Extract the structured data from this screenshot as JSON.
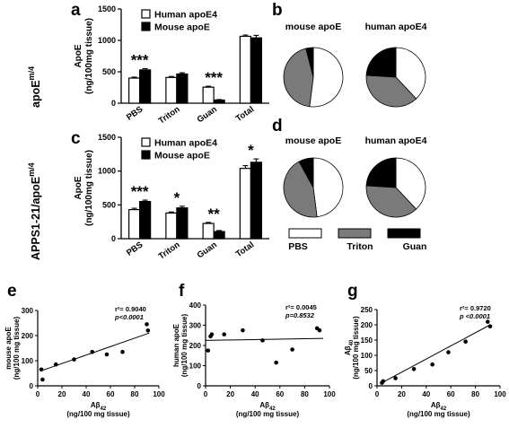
{
  "colors": {
    "pbs": "#ffffff",
    "triton": "#7a7a7a",
    "guan": "#000000",
    "human": "#ffffff",
    "mouse": "#000000"
  },
  "panel_letters": {
    "a": "a",
    "b": "b",
    "c": "c",
    "d": "d",
    "e": "e",
    "f": "f",
    "g": "g"
  },
  "row_labels": {
    "top": "apoE",
    "top_sup": "m/4",
    "mid": "APPS1-21/apoE",
    "mid_sup": "m/4"
  },
  "pie_legend": [
    "PBS",
    "Triton",
    "Guan"
  ],
  "chart_data": [
    {
      "id": "a",
      "type": "bar",
      "categories": [
        "PBS",
        "Triton",
        "Guan",
        "Total"
      ],
      "series": [
        {
          "name": "Human apoE4",
          "values": [
            400,
            410,
            255,
            1065
          ],
          "errors": [
            15,
            15,
            15,
            20
          ]
        },
        {
          "name": "Mouse apoE",
          "values": [
            530,
            465,
            50,
            1040
          ],
          "errors": [
            20,
            20,
            8,
            40
          ]
        }
      ],
      "significance": [
        "***",
        "",
        "***",
        ""
      ],
      "ylabel": [
        "ApoE",
        "(ng/100mg tissue)"
      ],
      "ylim": [
        0,
        1500
      ],
      "yticks": [
        0,
        500,
        1000,
        1500
      ]
    },
    {
      "id": "b",
      "type": "pie",
      "pies": [
        {
          "title": "mouse apoE",
          "values": [
            52,
            44,
            4
          ]
        },
        {
          "title": "human apoE4",
          "values": [
            38,
            38,
            24
          ]
        }
      ],
      "labels": [
        "PBS",
        "Triton",
        "Guan"
      ]
    },
    {
      "id": "c",
      "type": "bar",
      "categories": [
        "PBS",
        "Triton",
        "Guan",
        "Total"
      ],
      "series": [
        {
          "name": "Human apoE4",
          "values": [
            430,
            380,
            225,
            1040
          ],
          "errors": [
            20,
            15,
            15,
            40
          ]
        },
        {
          "name": "Mouse apoE",
          "values": [
            550,
            455,
            105,
            1130
          ],
          "errors": [
            20,
            25,
            15,
            50
          ]
        }
      ],
      "significance": [
        "***",
        "*",
        "**",
        "*"
      ],
      "ylabel": [
        "ApoE",
        "(ng/100mg tissue)"
      ],
      "ylim": [
        0,
        1500
      ],
      "yticks": [
        0,
        500,
        1000,
        1500
      ]
    },
    {
      "id": "d",
      "type": "pie",
      "pies": [
        {
          "title": "mouse apoE",
          "values": [
            48,
            44,
            8
          ]
        },
        {
          "title": "human apoE4",
          "values": [
            38,
            38,
            24
          ]
        }
      ],
      "labels": [
        "PBS",
        "Triton",
        "Guan"
      ]
    },
    {
      "id": "e",
      "type": "scatter",
      "x": [
        3,
        4,
        15,
        30,
        45,
        57,
        70,
        90,
        91
      ],
      "y": [
        65,
        25,
        85,
        105,
        135,
        125,
        135,
        245,
        220
      ],
      "fit": [
        [
          3,
          60
        ],
        [
          92,
          210
        ]
      ],
      "stat": [
        "r²= 0.9040",
        "p<0.0001"
      ],
      "xlabel": [
        "Aβ",
        "42",
        "(ng/100 mg tissue)"
      ],
      "ylabel": [
        "mouse apoE",
        "(ng/100 mg tissue)"
      ],
      "xlim": [
        0,
        100
      ],
      "ylim": [
        0,
        300
      ],
      "xticks": [
        0,
        20,
        40,
        60,
        80,
        100
      ],
      "yticks": [
        0,
        100,
        200,
        300
      ]
    },
    {
      "id": "f",
      "type": "scatter",
      "x": [
        2,
        4,
        5,
        15,
        30,
        46,
        57,
        70,
        90,
        92
      ],
      "y": [
        175,
        245,
        255,
        255,
        275,
        225,
        115,
        180,
        285,
        275
      ],
      "fit": [
        [
          0,
          225
        ],
        [
          95,
          235
        ]
      ],
      "stat": [
        "r²= 0.0045",
        "p=0.8532"
      ],
      "xlabel": [
        "Aβ",
        "42",
        "(ng/100 mg tissue)"
      ],
      "ylabel": [
        "human apoE",
        "(ng/100 mg tissue)"
      ],
      "xlim": [
        0,
        100
      ],
      "ylim": [
        0,
        400
      ],
      "xticks": [
        0,
        20,
        40,
        60,
        80,
        100
      ],
      "yticks": [
        0,
        100,
        200,
        300,
        400
      ]
    },
    {
      "id": "g",
      "type": "scatter",
      "x": [
        4,
        5,
        15,
        30,
        45,
        58,
        72,
        90,
        92
      ],
      "y": [
        10,
        15,
        25,
        55,
        70,
        110,
        145,
        210,
        195
      ],
      "fit": [
        [
          4,
          10
        ],
        [
          92,
          200
        ]
      ],
      "stat": [
        "r²= 0.9720",
        "p <0.0001"
      ],
      "xlabel": [
        "Aβ",
        "42",
        "(ng/100 mg tissue)"
      ],
      "ylabel": [
        "Aβ",
        "40",
        "(ng/100 mg tissue)"
      ],
      "xlim": [
        0,
        100
      ],
      "ylim": [
        0,
        250
      ],
      "xticks": [
        0,
        20,
        40,
        60,
        80,
        100
      ],
      "yticks": [
        0,
        50,
        100,
        150,
        200,
        250
      ]
    }
  ]
}
